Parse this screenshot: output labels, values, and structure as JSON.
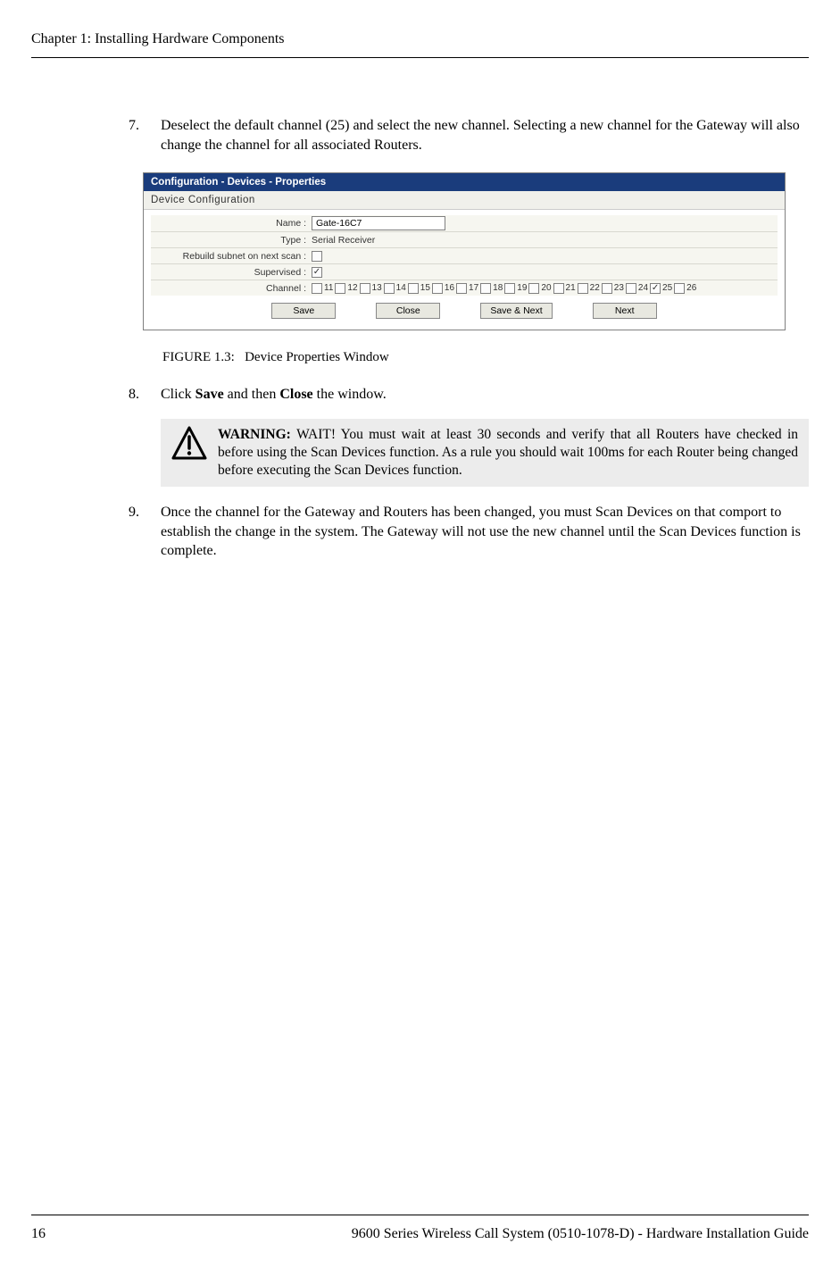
{
  "header": {
    "chapter_title": "Chapter 1: Installing Hardware Components"
  },
  "steps": {
    "s7": {
      "num": "7.",
      "text": "Deselect the default channel (25) and select the new channel. Selecting a new channel for the Gateway will also change the channel for all associated Routers."
    },
    "s8": {
      "num": "8.",
      "text_prefix": "Click ",
      "save_word": "Save",
      "text_mid": " and then ",
      "close_word": "Close",
      "text_suffix": " the window."
    },
    "s9": {
      "num": "9.",
      "text": "Once the channel for the Gateway and Routers has been changed, you must Scan Devices on that comport to establish the change in the system. The Gateway will not use the new channel until the Scan Devices function is complete."
    }
  },
  "screenshot": {
    "titlebar": "Configuration - Devices - Properties",
    "section_title": "Device Configuration",
    "rows": {
      "name_label": "Name :",
      "name_value": "Gate-16C7",
      "type_label": "Type :",
      "type_value": "Serial Receiver",
      "rebuild_label": "Rebuild subnet on next scan :",
      "rebuild_checked": false,
      "supervised_label": "Supervised :",
      "supervised_checked": true,
      "channel_label": "Channel :"
    },
    "channels": [
      {
        "n": "11",
        "checked": false
      },
      {
        "n": "12",
        "checked": false
      },
      {
        "n": "13",
        "checked": false
      },
      {
        "n": "14",
        "checked": false
      },
      {
        "n": "15",
        "checked": false
      },
      {
        "n": "16",
        "checked": false
      },
      {
        "n": "17",
        "checked": false
      },
      {
        "n": "18",
        "checked": false
      },
      {
        "n": "19",
        "checked": false
      },
      {
        "n": "20",
        "checked": false
      },
      {
        "n": "21",
        "checked": false
      },
      {
        "n": "22",
        "checked": false
      },
      {
        "n": "23",
        "checked": false
      },
      {
        "n": "24",
        "checked": false
      },
      {
        "n": "25",
        "checked": true
      },
      {
        "n": "26",
        "checked": false
      }
    ],
    "buttons": {
      "save": "Save",
      "close": "Close",
      "save_next": "Save & Next",
      "next": "Next"
    }
  },
  "figure": {
    "caption_label": "FIGURE 1.3:",
    "caption_text": "Device Properties Window"
  },
  "warning": {
    "label": "WARNING:",
    "text": "WAIT! You must wait at least 30 seconds and verify that all Routers have checked in before using the Scan Devices function. As a rule you should wait 100ms for each Router being changed before executing the Scan Devices function."
  },
  "footer": {
    "page_num": "16",
    "doc_title": "9600 Series Wireless Call System (0510-1078-D) - Hardware Installation Guide"
  },
  "colors": {
    "titlebar_bg": "#1a3c7c",
    "warning_bg": "#ececec"
  }
}
